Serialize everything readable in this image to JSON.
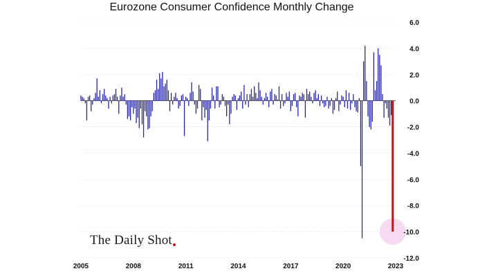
{
  "chart_data": {
    "type": "bar",
    "title": "Eurozone Consumer Confidence Monthly Change",
    "xlabel": "",
    "ylabel": "",
    "ylim": [
      -12,
      6
    ],
    "xlim": [
      2005,
      2023
    ],
    "y_ticks": [
      "6.0",
      "4.0",
      "2.0",
      "0.0",
      "-2.0",
      "-4.0",
      "-6.0",
      "-8.0",
      "-10.0",
      "-12.0"
    ],
    "x_ticks": [
      "2005",
      "2008",
      "2011",
      "2014",
      "2017",
      "2020",
      "2023"
    ],
    "grid": "horizontal dotted",
    "bar_color": "#1f1fa8",
    "highlight_color": "#c0141c",
    "highlight_marker_color": "#f5d3f0",
    "start_date": "2005-01",
    "series": [
      {
        "values": [
          0.4,
          0.3,
          0.2,
          -0.2,
          -1.5,
          0.3,
          0.4,
          -0.8,
          -0.3,
          0.2,
          0.6,
          1.7,
          0.3,
          0.8,
          -0.2,
          0.5,
          0.9,
          0.4,
          0.2,
          -0.6,
          0.3,
          -0.2,
          0.4,
          0.5,
          0.9,
          0.3,
          -1,
          0.4,
          1,
          0.3,
          0.5,
          -0.3,
          -1.4,
          -1.2,
          -1.5,
          -0.5,
          -1,
          -0.6,
          -1.7,
          -1.3,
          -2.1,
          -0.6,
          -1.8,
          -2.8,
          -0.8,
          -1.2,
          -2.2,
          -2.1,
          -1.2,
          -0.8,
          0.6,
          0.8,
          1.6,
          0.9,
          2.1,
          1.7,
          2.2,
          1.1,
          1.3,
          1.6,
          0.8,
          -0.8,
          0.6,
          -0.3,
          0.3,
          0.6,
          0.2,
          -0.6,
          -0.4,
          0.4,
          0.5,
          -2.7,
          0.3,
          0.2,
          -0.4,
          0.6,
          1.4,
          0.7,
          -0.3,
          -1,
          -0.6,
          1.2,
          0.9,
          -1.5,
          -0.5,
          -1.3,
          -0.7,
          -3.1,
          -1.5,
          -0.6,
          1,
          0.4,
          -0.6,
          1.1,
          1.1,
          -0.5,
          -0.3,
          0.5,
          0.3,
          -0.4,
          -1.2,
          -0.3,
          -1.8,
          -1,
          0.3,
          0.5,
          0.4,
          -0.7,
          0.2,
          0.4,
          0.7,
          -0.6,
          1.2,
          -0.3,
          0.5,
          -0.5,
          0.5,
          0.9,
          0.3,
          1.1,
          0.6,
          0.2,
          1.4,
          0.8,
          0.3,
          -0.3,
          0.2,
          0.6,
          0.3,
          -0.5,
          0.7,
          0.9,
          -0.3,
          0.5,
          0.4,
          0.1,
          1.1,
          -0.6,
          0.5,
          -0.4,
          -0.2,
          0.6,
          0.3,
          0.7,
          -0.8,
          -0.4,
          0.5,
          0.6,
          -0.5,
          -1.2,
          0.4,
          0.3,
          0.6,
          0.5,
          -1.3,
          0.9,
          0.5,
          0.7,
          0.3,
          -0.2,
          0.6,
          0.8,
          0.2,
          0.5,
          -0.4,
          0.4,
          -0.2,
          -0.5,
          -0.4,
          0.3,
          -0.6,
          -0.4,
          0.2,
          -1,
          -0.7,
          0.2,
          0.7,
          -0.8,
          -0.3,
          0.4,
          0.3,
          -0.5,
          0.8,
          -0.6,
          0.6,
          -0.7,
          -0.2,
          0.5,
          -0.5,
          -0.8,
          -0.9,
          0.2,
          -5,
          -10.5,
          3,
          4.2,
          1.5,
          -1.2,
          -2,
          -2.2,
          -1.6,
          3.7,
          0.8,
          1.5,
          4,
          3.5,
          2.7,
          0.5,
          -1.3,
          -0.2,
          -0.6,
          -1.3,
          -1.9,
          -1.1,
          -10
        ]
      }
    ]
  },
  "logo_text": "The Daily Shot"
}
